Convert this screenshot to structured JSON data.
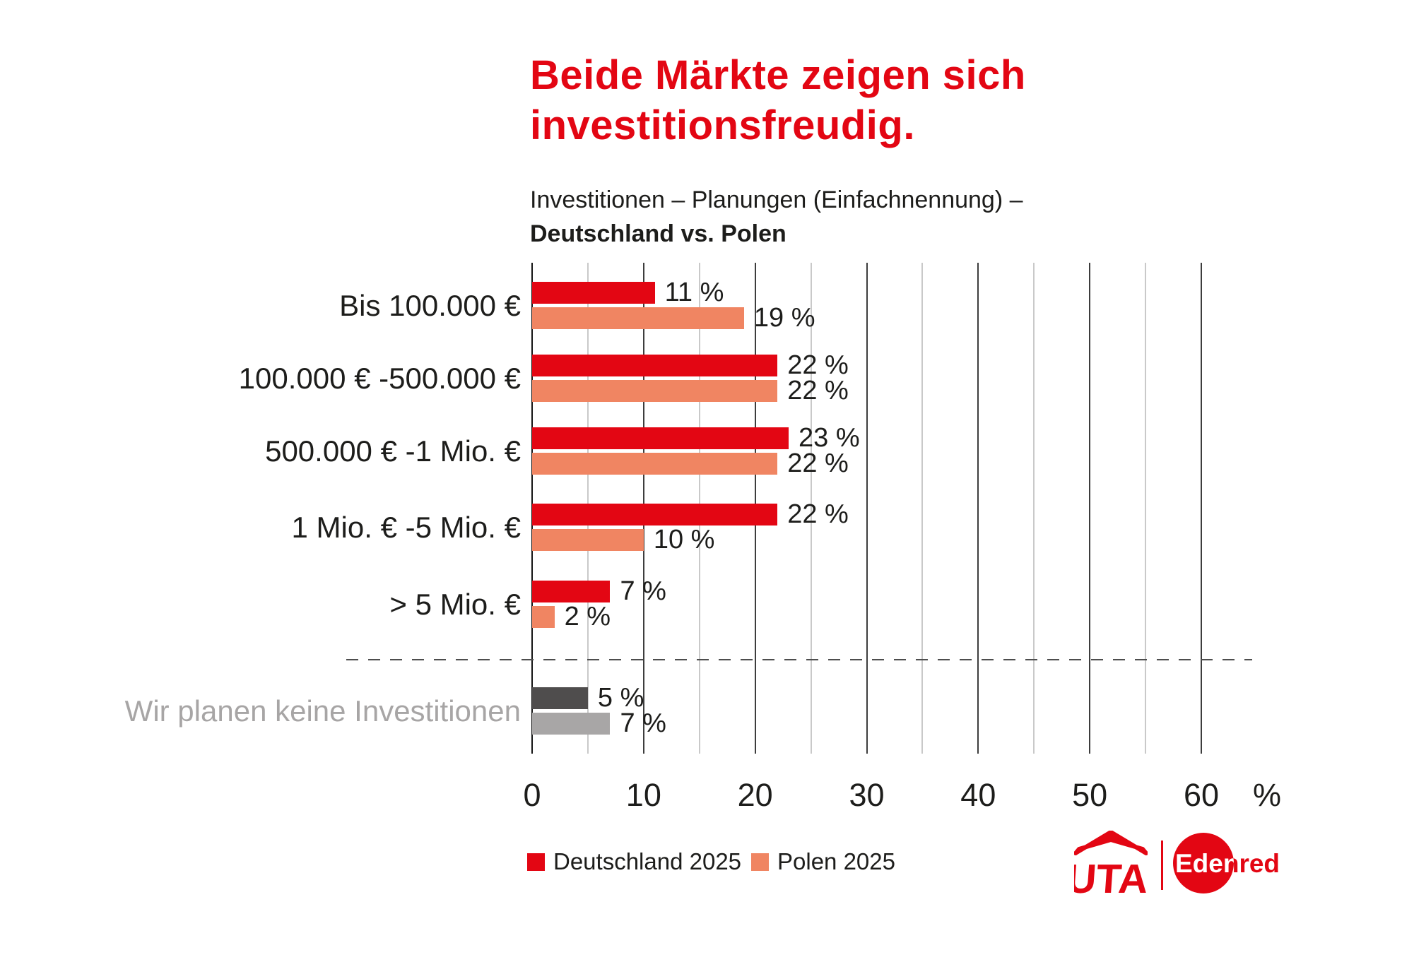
{
  "title": {
    "line1": "Beide Märkte zeigen sich",
    "line2": "investitionsfreudig."
  },
  "subtitle": {
    "line1": "Investitionen – Planungen (Einfachnennung) –",
    "line2": "Deutschland vs. Polen"
  },
  "chart_data": {
    "type": "bar",
    "orientation": "horizontal",
    "unit": "%",
    "categories": [
      "Bis 100.000 €",
      "100.000 € -500.000 €",
      "500.000 € -1 Mio. €",
      "1 Mio. € -5 Mio. €",
      "> 5 Mio. €",
      "Wir planen keine Investitionen"
    ],
    "series": [
      {
        "name": "Deutschland 2025",
        "color": "#e30613",
        "muted_color": "#4f4d4d",
        "values": [
          11,
          22,
          23,
          22,
          7,
          5
        ]
      },
      {
        "name": "Polen 2025",
        "color": "#f08562",
        "muted_color": "#a8a6a6",
        "values": [
          19,
          22,
          22,
          10,
          2,
          7
        ]
      }
    ],
    "value_labels": [
      [
        "11 %",
        "22 %",
        "23 %",
        "22 %",
        "7 %",
        "5 %"
      ],
      [
        "19 %",
        "22 %",
        "22 %",
        "10 %",
        "2 %",
        "7 %"
      ]
    ],
    "muted_category_index": 5,
    "xlim": [
      0,
      60
    ],
    "xticks": [
      0,
      10,
      20,
      30,
      40,
      50,
      60
    ],
    "xaxis_unit_label": "%",
    "grid": {
      "minor_every": 5,
      "major_every": 10,
      "grid_on": true
    },
    "legend_position": "bottom",
    "separator_note": "dashed line between investment-size categories and the no-investment category"
  },
  "legend": {
    "items": [
      {
        "label": "Deutschland 2025",
        "color": "#e30613"
      },
      {
        "label": "Polen 2025",
        "color": "#f08562"
      }
    ]
  },
  "logos": {
    "uta": "UTA",
    "edenred": "Edenred"
  },
  "colors": {
    "title_red": "#e30613",
    "text": "#1d1d1b",
    "muted_text": "#a7a5a5",
    "grid_major": "#3d3d3d",
    "grid_minor": "#c9c9c9",
    "axis": "#141414",
    "separator": "#4d4d4d"
  }
}
